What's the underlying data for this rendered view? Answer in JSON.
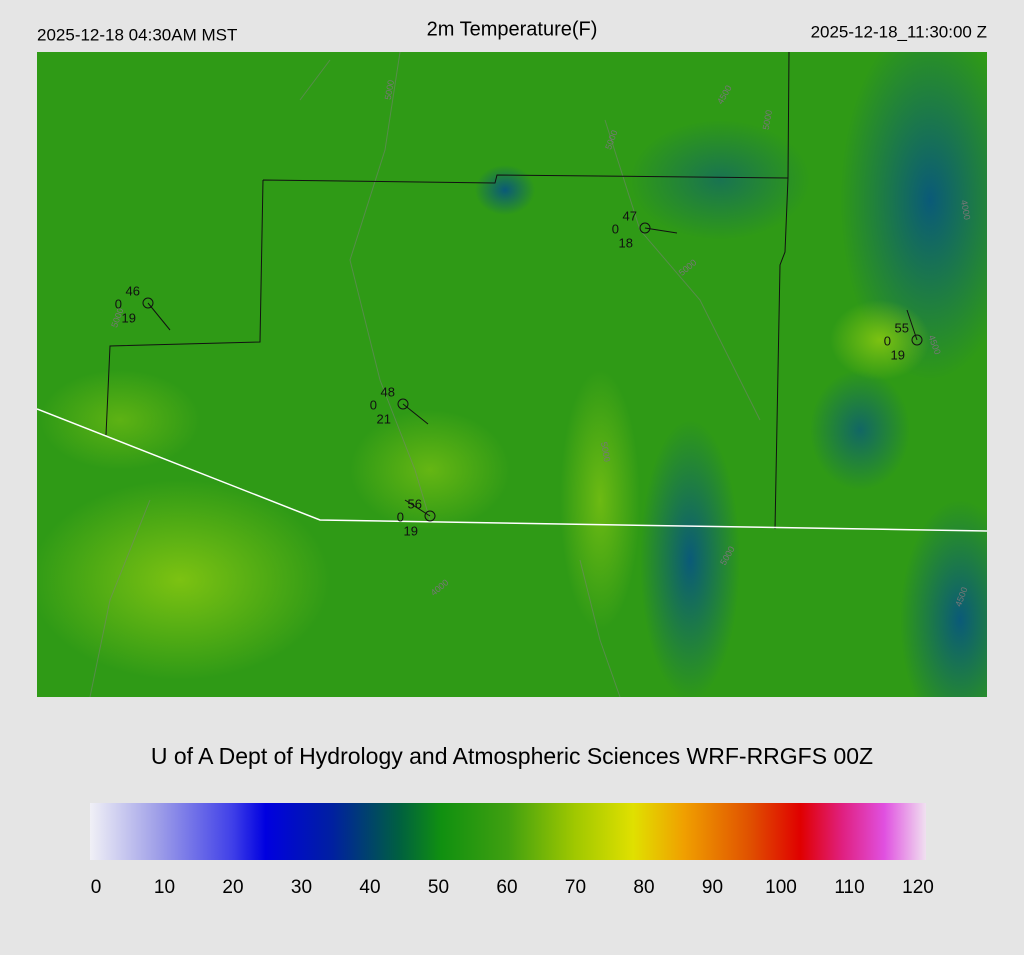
{
  "header": {
    "local_time": "2025-12-18 04:30AM MST",
    "title": "2m Temperature(F)",
    "utc_time": "2025-12-18_11:30:00 Z"
  },
  "stations": [
    {
      "temperature": "46",
      "code": "0",
      "value": "19"
    },
    {
      "temperature": "47",
      "code": "0",
      "value": "18"
    },
    {
      "temperature": "48",
      "code": "0",
      "value": "21"
    },
    {
      "temperature": "56",
      "code": "0",
      "value": "19"
    },
    {
      "temperature": "55",
      "code": "0",
      "value": "19"
    }
  ],
  "contour_labels": [
    "5000",
    "5000",
    "4500",
    "5000",
    "5000",
    "4000",
    "5000",
    "4500",
    "5000",
    "4000",
    "5000",
    "4500"
  ],
  "credit": "U of A Dept of Hydrology and Atmospheric Sciences WRF-RRGFS 00Z",
  "colorbar": {
    "ticks": [
      0,
      10,
      20,
      30,
      40,
      50,
      60,
      70,
      80,
      90,
      100,
      110,
      120
    ]
  }
}
